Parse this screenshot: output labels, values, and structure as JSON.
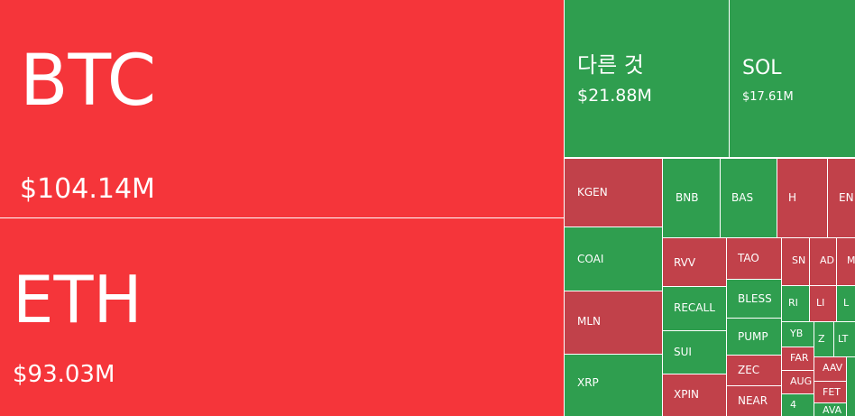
{
  "chart_data": {
    "type": "treemap",
    "colors": {
      "down_large": "#f5353a",
      "up": "#2f9e4f",
      "down": "#c1414a"
    },
    "tiles": [
      {
        "label": "BTC",
        "value": "$104.14M",
        "trend": "down_large"
      },
      {
        "label": "ETH",
        "value": "$93.03M",
        "trend": "down_large"
      },
      {
        "label": "다른 것",
        "value": "$21.88M",
        "trend": "up"
      },
      {
        "label": "SOL",
        "value": "$17.61M",
        "trend": "up"
      },
      {
        "label": "KGEN",
        "trend": "down"
      },
      {
        "label": "COAI",
        "trend": "up"
      },
      {
        "label": "MLN",
        "trend": "down"
      },
      {
        "label": "XRP",
        "trend": "up"
      },
      {
        "label": "BNB",
        "trend": "up"
      },
      {
        "label": "BAS",
        "trend": "up"
      },
      {
        "label": "H",
        "trend": "down"
      },
      {
        "label": "EN",
        "trend": "down"
      },
      {
        "label": "RVV",
        "trend": "down"
      },
      {
        "label": "RECALL",
        "trend": "up"
      },
      {
        "label": "SUI",
        "trend": "up"
      },
      {
        "label": "XPIN",
        "trend": "down"
      },
      {
        "label": "TAO",
        "trend": "down"
      },
      {
        "label": "BLESS",
        "trend": "up"
      },
      {
        "label": "PUMP",
        "trend": "up"
      },
      {
        "label": "ZEC",
        "trend": "down"
      },
      {
        "label": "NEAR",
        "trend": "down"
      },
      {
        "label": "SN",
        "trend": "down"
      },
      {
        "label": "AD",
        "trend": "down"
      },
      {
        "label": "M",
        "trend": "down"
      },
      {
        "label": "RI",
        "trend": "up"
      },
      {
        "label": "LI",
        "trend": "down"
      },
      {
        "label": "L",
        "trend": "up"
      },
      {
        "label": "YB",
        "trend": "up"
      },
      {
        "label": "Z",
        "trend": "up"
      },
      {
        "label": "LT",
        "trend": "up"
      },
      {
        "label": "FAR",
        "trend": "down"
      },
      {
        "label": "AUG",
        "trend": "down"
      },
      {
        "label": "4",
        "trend": "up"
      },
      {
        "label": "AAV",
        "trend": "down"
      },
      {
        "label": "FET",
        "trend": "down"
      },
      {
        "label": "AVA",
        "trend": "up"
      },
      {
        "label": "",
        "trend": "up"
      }
    ]
  }
}
